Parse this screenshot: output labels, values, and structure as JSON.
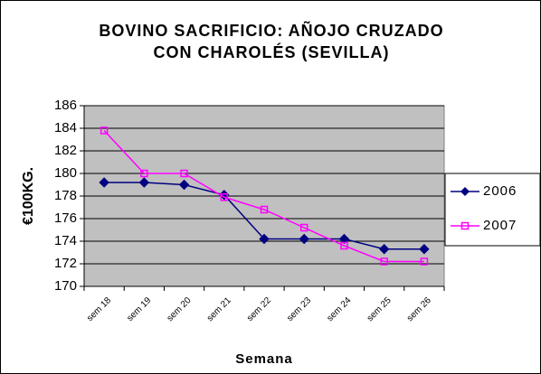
{
  "chart_data": {
    "type": "line",
    "title": "BOVINO SACRIFICIO: AÑOJO CRUZADO CON CHAROLÉS (SEVILLA)",
    "x_label": "Semana",
    "y_label": "€100KG.",
    "categories": [
      "sem 18",
      "sem 19",
      "sem 20",
      "sem 21",
      "sem 22",
      "sem 23",
      "sem 24",
      "sem 25",
      "sem 26"
    ],
    "series": [
      {
        "name": "2006",
        "color": "#000080",
        "marker": "diamond",
        "values": [
          179.2,
          179.2,
          179.0,
          178.1,
          174.2,
          174.2,
          174.2,
          173.3,
          173.3
        ]
      },
      {
        "name": "2007",
        "color": "#ff00ff",
        "marker": "square",
        "values": [
          183.8,
          180.0,
          180.0,
          177.9,
          176.8,
          175.2,
          173.6,
          172.2,
          172.2
        ]
      }
    ],
    "ylim": [
      170,
      186
    ],
    "yticks": [
      170,
      172,
      174,
      176,
      178,
      180,
      182,
      184,
      186
    ],
    "grid": true,
    "legend": "right"
  }
}
